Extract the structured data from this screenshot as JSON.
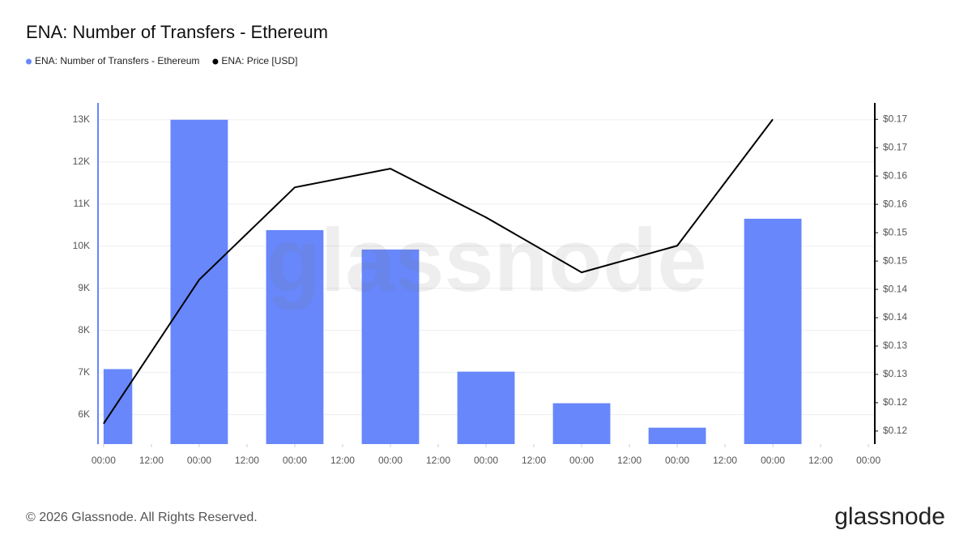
{
  "chart_data": {
    "type": "bar",
    "title": "ENA: Number of Transfers - Ethereum",
    "watermark": "glassnode",
    "footer": "© 2026 Glassnode. All Rights Reserved.",
    "logo": "glassnode",
    "x": [
      0,
      24,
      48,
      72,
      96,
      120,
      144,
      168
    ],
    "xlim": [
      -1.4,
      193.6
    ],
    "xticks": [
      {
        "value": 0,
        "label": "00:00"
      },
      {
        "value": 12,
        "label": "12:00"
      },
      {
        "value": 24,
        "label": "00:00"
      },
      {
        "value": 36,
        "label": "12:00"
      },
      {
        "value": 48,
        "label": "00:00"
      },
      {
        "value": 60,
        "label": "12:00"
      },
      {
        "value": 72,
        "label": "00:00"
      },
      {
        "value": 84,
        "label": "12:00"
      },
      {
        "value": 96,
        "label": "00:00"
      },
      {
        "value": 108,
        "label": "12:00"
      },
      {
        "value": 120,
        "label": "00:00"
      },
      {
        "value": 132,
        "label": "12:00"
      },
      {
        "value": 144,
        "label": "00:00"
      },
      {
        "value": 156,
        "label": "12:00"
      },
      {
        "value": 168,
        "label": "00:00"
      },
      {
        "value": 180,
        "label": "12:00"
      },
      {
        "value": 192,
        "label": "00:00"
      }
    ],
    "ylim": [
      5300,
      13400
    ],
    "yticks": [
      {
        "value": 6000,
        "label": "6K"
      },
      {
        "value": 7000,
        "label": "7K"
      },
      {
        "value": 8000,
        "label": "8K"
      },
      {
        "value": 9000,
        "label": "9K"
      },
      {
        "value": 10000,
        "label": "10K"
      },
      {
        "value": 11000,
        "label": "11K"
      },
      {
        "value": 12000,
        "label": "12K"
      },
      {
        "value": 13000,
        "label": "13K"
      }
    ],
    "y2lim": [
      0.1152,
      0.1754
    ],
    "y2ticks": [
      {
        "value": 0.1175,
        "label": "$0.12"
      },
      {
        "value": 0.1225,
        "label": "$0.12"
      },
      {
        "value": 0.1275,
        "label": "$0.13"
      },
      {
        "value": 0.1325,
        "label": "$0.13"
      },
      {
        "value": 0.1375,
        "label": "$0.14"
      },
      {
        "value": 0.1425,
        "label": "$0.14"
      },
      {
        "value": 0.1475,
        "label": "$0.15"
      },
      {
        "value": 0.1525,
        "label": "$0.15"
      },
      {
        "value": 0.1575,
        "label": "$0.16"
      },
      {
        "value": 0.1625,
        "label": "$0.16"
      },
      {
        "value": 0.1675,
        "label": "$0.17"
      },
      {
        "value": 0.1725,
        "label": "$0.17"
      }
    ],
    "grid": true,
    "legend": "top-left",
    "series": [
      {
        "name": "ENA: Number of Transfers - Ethereum",
        "type": "bar",
        "axis": "y",
        "color": "#6787fb",
        "values": [
          7080,
          13000,
          10380,
          9920,
          7020,
          6270,
          5690,
          10650
        ]
      },
      {
        "name": "ENA: Price [USD]",
        "type": "line",
        "axis": "y2",
        "color": "#000000",
        "values": [
          0.1188,
          0.1442,
          0.1605,
          0.1638,
          0.1552,
          0.1455,
          0.1502,
          0.1725
        ]
      }
    ]
  }
}
